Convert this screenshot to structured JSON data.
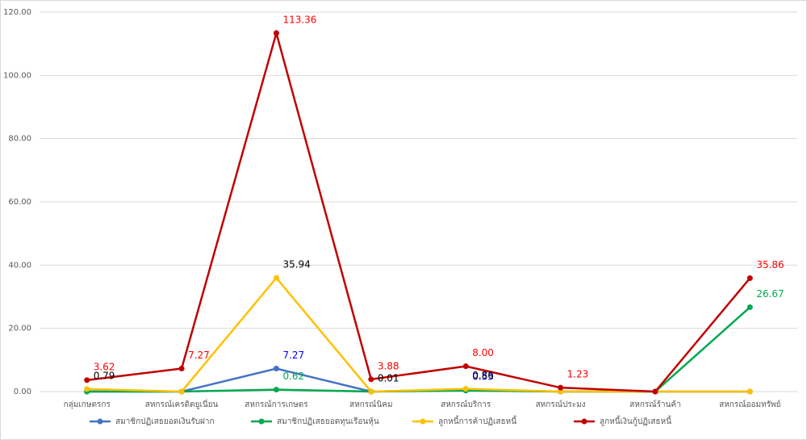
{
  "chart_data": {
    "type": "line",
    "categories": [
      "กลุ่มเกษตรกร",
      "สหกรณ์เครดิตยูเนี่ยน",
      "สหกรณ์การเกษตร",
      "สหกรณ์นิคม",
      "สหกรณ์บริการ",
      "สหกรณ์ประมง",
      "สหกรณ์ร้านค้า",
      "สหกรณ์ออมทรัพย์"
    ],
    "series": [
      {
        "name": "สมาชิกปฏิเสธยอดเงินรับฝาก",
        "color": "#4472c4",
        "label_color": "#0000ff",
        "values": [
          0,
          0,
          7.27,
          0,
          0.53,
          0,
          0,
          0
        ],
        "value_labels": [
          null,
          null,
          "7.27",
          null,
          "0.53",
          null,
          null,
          null
        ]
      },
      {
        "name": "สมาชิกปฏิเสธยอดทุนเรือนหุ้น",
        "color": "#00a84f",
        "label_color": "#00a84f",
        "values": [
          0,
          0,
          0.62,
          0,
          0.3,
          0,
          0,
          26.67
        ],
        "value_labels": [
          null,
          null,
          "0.62",
          null,
          null,
          null,
          null,
          "26.67"
        ]
      },
      {
        "name": "ลูกหนี้การค้าปฏิเสธหนี้",
        "color": "#ffc000",
        "label_color": "#000000",
        "values": [
          0.79,
          0,
          35.94,
          0.01,
          0.86,
          0,
          0,
          0
        ],
        "value_labels": [
          "0.79",
          null,
          "35.94",
          "0.01",
          "0.86",
          null,
          null,
          null
        ]
      },
      {
        "name": "ลูกหนี้เงินกู้ปฏิเสธหนี้",
        "color": "#c00000",
        "label_color": "#ff0000",
        "values": [
          3.62,
          7.27,
          113.36,
          3.88,
          8,
          1.23,
          0,
          35.86
        ],
        "value_labels": [
          "3.62",
          "7.27",
          "113.36",
          "3.88",
          "8.00",
          "1.23",
          null,
          "35.86"
        ]
      }
    ],
    "ylim": [
      0,
      120
    ],
    "yticks": [
      {
        "value": 0,
        "label": "0.00"
      },
      {
        "value": 20,
        "label": "20.00"
      },
      {
        "value": 40,
        "label": "40.00"
      },
      {
        "value": 60,
        "label": "60.00"
      },
      {
        "value": 80,
        "label": "80.00"
      },
      {
        "value": 100,
        "label": "100.00"
      },
      {
        "value": 120,
        "label": "120.00"
      }
    ],
    "grid": true,
    "legend": "bottom"
  }
}
